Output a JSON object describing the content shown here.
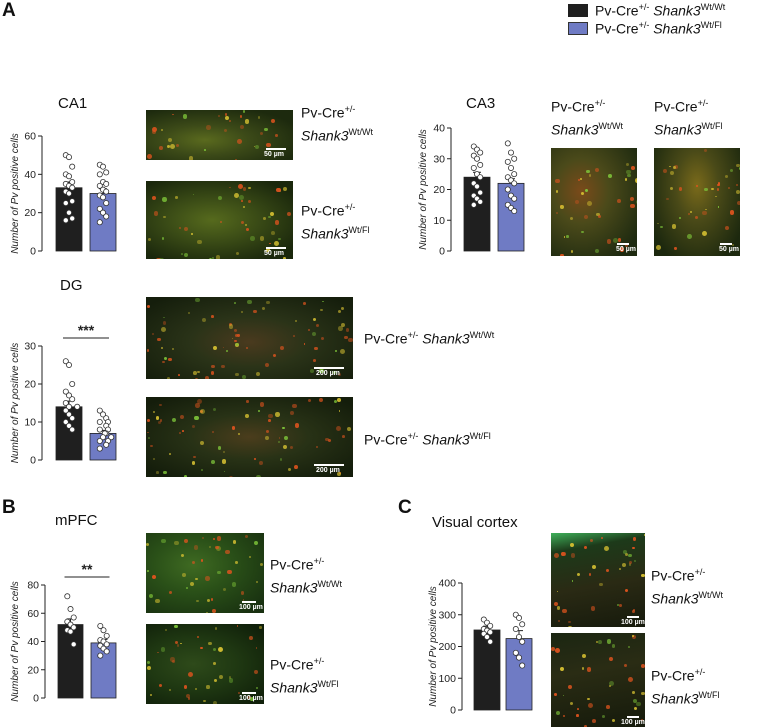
{
  "colors": {
    "wt": "#1f1f1f",
    "fl": "#6f7bc4",
    "dot_fill": "#ffffff",
    "dot_stroke": "#333333"
  },
  "legend": {
    "wt_prefix": "Pv-Cre",
    "wt_sup": "+/-",
    "wt_gene": "Shank3",
    "wt_geno": "Wt/Wt",
    "fl_prefix": "Pv-Cre",
    "fl_sup": "+/-",
    "fl_gene": "Shank3",
    "fl_geno": "Wt/Fl"
  },
  "labels": {
    "panel_a": "A",
    "panel_b": "B",
    "panel_c": "C",
    "ca1": "CA1",
    "ca3": "CA3",
    "dg": "DG",
    "mpfc": "mPFC",
    "vc": "Visual cortex",
    "pv_cre": "Pv-Cre",
    "sup": "+/-",
    "gene": "Shank3",
    "wtwt": "Wt/Wt",
    "wtfl": "Wt/Fl"
  },
  "scalebars": {
    "um50": "50 µm",
    "um200": "200 µm",
    "um100": "100 µm"
  },
  "chart_data": [
    {
      "id": "ca1",
      "type": "bar",
      "title": "CA1",
      "ylabel": "Number of Pv positive cells",
      "ylim": [
        0,
        60
      ],
      "yticks": [
        0,
        20,
        40,
        60
      ],
      "series": [
        {
          "values": [
            33
          ],
          "sem": 3,
          "points": [
            50,
            49,
            44,
            40,
            39,
            36,
            35,
            34,
            33,
            31,
            30,
            26,
            25,
            20,
            17,
            16
          ]
        },
        {
          "values": [
            30
          ],
          "sem": 2.5,
          "points": [
            45,
            44,
            41,
            40,
            36,
            35,
            34,
            32,
            31,
            29,
            28,
            25,
            22,
            20,
            18,
            15
          ]
        }
      ]
    },
    {
      "id": "ca3",
      "type": "bar",
      "title": "CA3",
      "ylabel": "Number of Pv positive cells",
      "ylim": [
        0,
        40
      ],
      "yticks": [
        0,
        10,
        20,
        30,
        40
      ],
      "series": [
        {
          "values": [
            24
          ],
          "sem": 1.6,
          "points": [
            34,
            33,
            32,
            31,
            30,
            28,
            27,
            25,
            24,
            22,
            21,
            19,
            18,
            17,
            16,
            15
          ]
        },
        {
          "values": [
            22
          ],
          "sem": 1.5,
          "points": [
            35,
            32,
            30,
            29,
            27,
            25,
            24,
            23,
            22,
            20,
            18,
            17,
            15,
            14,
            13
          ]
        }
      ]
    },
    {
      "id": "dg",
      "type": "bar",
      "title": "DG",
      "ylabel": "Number of Pv positive cells",
      "ylim": [
        0,
        30
      ],
      "yticks": [
        0,
        10,
        20,
        30
      ],
      "significance": "***",
      "series": [
        {
          "values": [
            14
          ],
          "sem": 1.5,
          "points": [
            26,
            25,
            20,
            18,
            17,
            16,
            15,
            14,
            14,
            13,
            12,
            11,
            10,
            9,
            8
          ]
        },
        {
          "values": [
            7
          ],
          "sem": 0.8,
          "points": [
            13,
            12,
            11,
            10,
            10,
            9,
            8,
            8,
            7,
            7,
            6,
            6,
            5,
            5,
            4,
            3
          ]
        }
      ]
    },
    {
      "id": "mpfc",
      "type": "bar",
      "title": "mPFC",
      "ylabel": "Number of Pv positive cells",
      "ylim": [
        0,
        80
      ],
      "yticks": [
        0,
        20,
        40,
        60,
        80
      ],
      "significance": "**",
      "series": [
        {
          "values": [
            52
          ],
          "sem": 4,
          "points": [
            72,
            63,
            57,
            54,
            52,
            50,
            48,
            47,
            38
          ]
        },
        {
          "values": [
            39
          ],
          "sem": 2.5,
          "points": [
            51,
            48,
            44,
            41,
            40,
            38,
            37,
            35,
            33,
            30
          ]
        }
      ]
    },
    {
      "id": "vc",
      "type": "bar",
      "title": "Visual cortex",
      "ylabel": "Number of Pv positive cells",
      "ylim": [
        0,
        400
      ],
      "yticks": [
        0,
        100,
        200,
        300,
        400
      ],
      "series": [
        {
          "values": [
            252
          ],
          "sem": 12,
          "points": [
            285,
            275,
            265,
            255,
            250,
            245,
            240,
            230,
            215
          ]
        },
        {
          "values": [
            225
          ],
          "sem": 25,
          "points": [
            300,
            290,
            270,
            255,
            230,
            215,
            180,
            165,
            140
          ]
        }
      ]
    }
  ]
}
